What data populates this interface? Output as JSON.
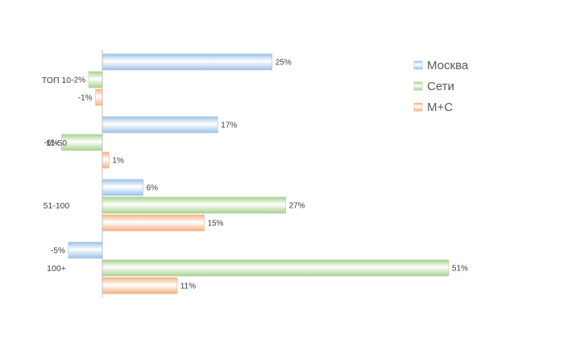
{
  "chart_data": {
    "type": "bar",
    "orientation": "horizontal",
    "categories": [
      "ТОП 10",
      "11-50",
      "51-100",
      "100+"
    ],
    "series": [
      {
        "name": "Москва",
        "values": [
          25,
          17,
          6,
          -5
        ],
        "labels": [
          "25%",
          "17%",
          "6%",
          "-5%"
        ],
        "color": "#9DC3E6"
      },
      {
        "name": "Сети",
        "values": [
          -2,
          -6,
          27,
          51
        ],
        "labels": [
          "-2%",
          "-6%",
          "27%",
          "51%"
        ],
        "color": "#A9D18E"
      },
      {
        "name": "М+С",
        "values": [
          -1,
          1,
          15,
          11
        ],
        "labels": [
          "-1%",
          "1%",
          "15%",
          "11%"
        ],
        "color": "#F4B183"
      }
    ],
    "xlim": [
      -5,
      51
    ],
    "unit": "%",
    "grid": false,
    "legend_position": "top-right"
  }
}
